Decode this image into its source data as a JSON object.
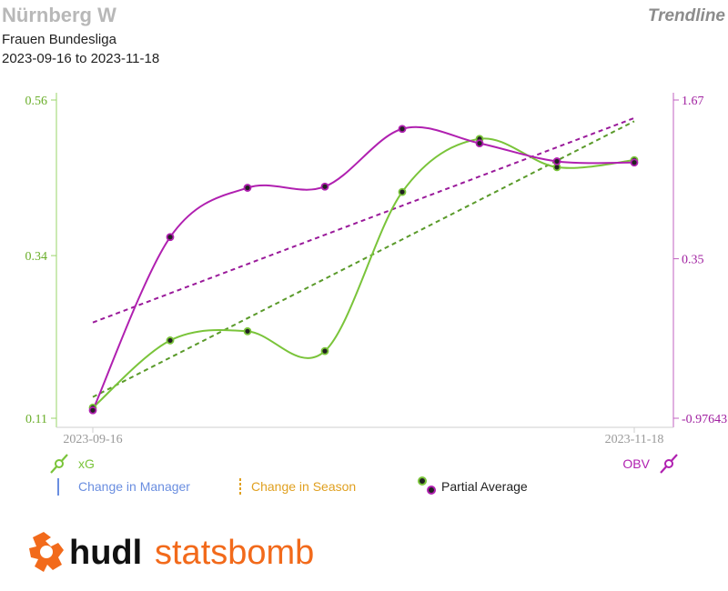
{
  "header": {
    "title": "Nürnberg W",
    "chart_kind": "Trendline",
    "competition": "Frauen Bundesliga",
    "date_range": "2023-09-16 to 2023-11-18"
  },
  "colors": {
    "xg": "#7ac43a",
    "xg_trend": "#5a9a2a",
    "obv": "#b020b0",
    "obv_trend": "#9a1a9a",
    "manager": "#6a8ee0",
    "season": "#e0a020",
    "axis_text_left": "#6aae2a",
    "axis_text_right": "#a020a0"
  },
  "legend": {
    "xg_label": "xG",
    "obv_label": "OBV",
    "manager_label": "Change in Manager",
    "season_label": "Change in Season",
    "partial_label": "Partial Average"
  },
  "logo": {
    "text_bold": "hudl",
    "text_light": "statsbomb"
  },
  "chart_data": {
    "type": "line",
    "x_labels": [
      "2023-09-16",
      "2023-11-18"
    ],
    "n_points": 8,
    "left_axis": {
      "ticks": [
        "0.56",
        "0.34",
        "0.11"
      ],
      "min": 0.11,
      "max": 0.56
    },
    "right_axis": {
      "ticks": [
        "1.67",
        "0.35",
        "-0.97643"
      ],
      "min": -0.97643,
      "max": 1.67
    },
    "series": [
      {
        "name": "xG",
        "axis": "left",
        "values": [
          0.125,
          0.22,
          0.233,
          0.205,
          0.43,
          0.505,
          0.465,
          0.475
        ],
        "trend": [
          0.14,
          0.53
        ]
      },
      {
        "name": "OBV",
        "axis": "right",
        "values": [
          -0.91,
          0.53,
          0.94,
          0.95,
          1.43,
          1.31,
          1.16,
          1.15
        ],
        "trend": [
          -0.18,
          1.52
        ]
      }
    ]
  }
}
